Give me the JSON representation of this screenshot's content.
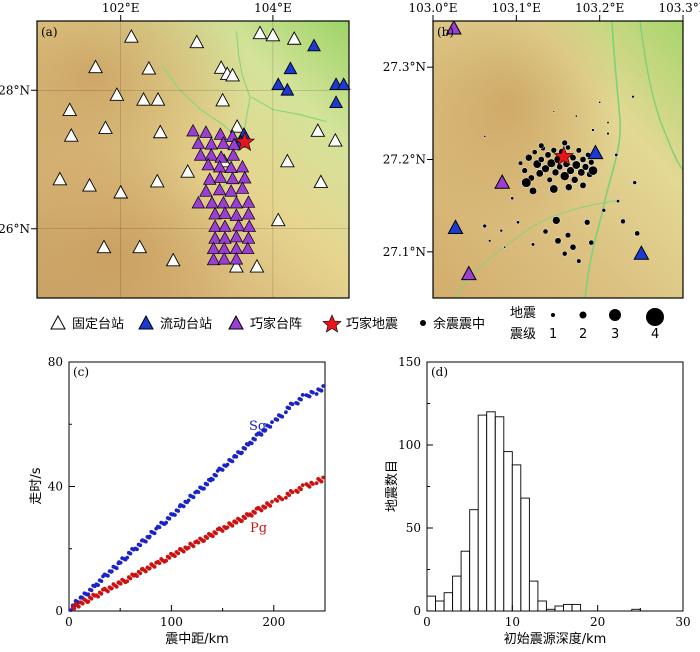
{
  "panel_labels": {
    "a": "(a)",
    "b": "(b)",
    "c": "(c)",
    "d": "(d)"
  },
  "map_a": {
    "lon_ticks": [
      "102°E",
      "104°E"
    ],
    "lat_ticks": [
      "28°N",
      "26°N"
    ],
    "fixed_stations": [
      [
        102.14,
        28.77
      ],
      [
        103.0,
        28.69
      ],
      [
        103.83,
        28.82
      ],
      [
        104.0,
        28.79
      ],
      [
        104.28,
        28.74
      ],
      [
        101.67,
        28.33
      ],
      [
        102.37,
        28.31
      ],
      [
        103.32,
        28.32
      ],
      [
        103.4,
        28.23
      ],
      [
        103.47,
        28.21
      ],
      [
        101.95,
        27.93
      ],
      [
        102.3,
        27.86
      ],
      [
        102.49,
        27.86
      ],
      [
        103.34,
        27.85
      ],
      [
        101.33,
        27.71
      ],
      [
        101.35,
        27.34
      ],
      [
        101.8,
        27.45
      ],
      [
        102.52,
        27.39
      ],
      [
        103.53,
        27.47
      ],
      [
        104.59,
        27.41
      ],
      [
        104.82,
        27.27
      ],
      [
        102.88,
        26.82
      ],
      [
        103.36,
        26.97
      ],
      [
        104.19,
        26.97
      ],
      [
        104.63,
        26.67
      ],
      [
        101.2,
        26.71
      ],
      [
        101.59,
        26.62
      ],
      [
        102.0,
        26.52
      ],
      [
        102.48,
        26.68
      ],
      [
        104.07,
        26.12
      ],
      [
        101.78,
        25.73
      ],
      [
        102.25,
        25.73
      ],
      [
        102.69,
        25.54
      ],
      [
        103.52,
        25.45
      ],
      [
        103.79,
        25.45
      ]
    ],
    "mobile_stations": [
      [
        104.23,
        28.31
      ],
      [
        104.19,
        28.0
      ],
      [
        104.07,
        28.08
      ],
      [
        104.83,
        28.08
      ],
      [
        104.93,
        28.08
      ],
      [
        104.83,
        27.82
      ],
      [
        104.54,
        28.64
      ],
      [
        103.62,
        27.36
      ],
      [
        103.58,
        27.25
      ]
    ],
    "array_stations": [
      [
        102.95,
        27.41
      ],
      [
        103.12,
        27.39
      ],
      [
        103.31,
        27.36
      ],
      [
        103.47,
        27.33
      ],
      [
        103.02,
        27.23
      ],
      [
        103.19,
        27.22
      ],
      [
        103.35,
        27.23
      ],
      [
        103.49,
        27.21
      ],
      [
        103.05,
        27.06
      ],
      [
        103.19,
        27.06
      ],
      [
        103.32,
        27.03
      ],
      [
        103.48,
        27.06
      ],
      [
        103.15,
        26.92
      ],
      [
        103.3,
        26.89
      ],
      [
        103.45,
        26.88
      ],
      [
        103.6,
        26.89
      ],
      [
        103.17,
        26.71
      ],
      [
        103.31,
        26.74
      ],
      [
        103.47,
        26.72
      ],
      [
        103.63,
        26.73
      ],
      [
        103.12,
        26.54
      ],
      [
        103.3,
        26.56
      ],
      [
        103.45,
        26.54
      ],
      [
        103.6,
        26.58
      ],
      [
        103.02,
        26.37
      ],
      [
        103.2,
        26.37
      ],
      [
        103.35,
        26.37
      ],
      [
        103.52,
        26.37
      ],
      [
        103.68,
        26.38
      ],
      [
        103.24,
        26.21
      ],
      [
        103.37,
        26.22
      ],
      [
        103.52,
        26.19
      ],
      [
        103.68,
        26.21
      ],
      [
        103.24,
        26.03
      ],
      [
        103.37,
        26.03
      ],
      [
        103.55,
        26.04
      ],
      [
        103.69,
        26.03
      ],
      [
        103.24,
        25.86
      ],
      [
        103.37,
        25.86
      ],
      [
        103.52,
        25.88
      ],
      [
        103.68,
        25.86
      ],
      [
        103.22,
        25.71
      ],
      [
        103.36,
        25.71
      ],
      [
        103.52,
        25.71
      ],
      [
        103.67,
        25.71
      ],
      [
        103.22,
        25.55
      ],
      [
        103.36,
        25.56
      ],
      [
        103.52,
        25.56
      ]
    ],
    "epicenter": [
      103.63,
      27.25
    ],
    "rivers": [
      [
        [
          103.52,
          28.85
        ],
        [
          103.55,
          28.5
        ],
        [
          103.6,
          28.2
        ],
        [
          103.7,
          27.9
        ],
        [
          103.65,
          27.6
        ],
        [
          103.6,
          27.25
        ],
        [
          103.45,
          26.95
        ],
        [
          103.35,
          26.6
        ]
      ],
      [
        [
          102.55,
          28.35
        ],
        [
          102.78,
          28.0
        ],
        [
          103.05,
          27.72
        ],
        [
          103.35,
          27.5
        ],
        [
          103.6,
          27.25
        ]
      ],
      [
        [
          103.72,
          27.9
        ],
        [
          104.0,
          27.72
        ],
        [
          104.35,
          27.65
        ],
        [
          104.7,
          27.55
        ]
      ]
    ]
  },
  "map_b": {
    "lon_ticks": [
      "103.0°E",
      "103.1°E",
      "103.2°E",
      "103.3°E"
    ],
    "lat_ticks": [
      "27.3°N",
      "27.2°N",
      "27.1°N"
    ],
    "mobile_stations": [
      [
        103.195,
        27.207
      ],
      [
        103.027,
        27.126
      ],
      [
        103.25,
        27.098
      ]
    ],
    "array_stations": [
      [
        103.083,
        27.175
      ],
      [
        103.043,
        27.076
      ],
      [
        103.025,
        27.342
      ]
    ],
    "epicenter": [
      103.157,
      27.203
    ],
    "aftershocks": [
      [
        103.105,
        27.196,
        2.0
      ],
      [
        103.11,
        27.188,
        2.4
      ],
      [
        103.115,
        27.202,
        2.8
      ],
      [
        103.118,
        27.18,
        2.6
      ],
      [
        103.122,
        27.208,
        2.2
      ],
      [
        103.125,
        27.195,
        3.2
      ],
      [
        103.128,
        27.185,
        2.9
      ],
      [
        103.13,
        27.2,
        2.5
      ],
      [
        103.132,
        27.212,
        2.1
      ],
      [
        103.135,
        27.19,
        3.0
      ],
      [
        103.138,
        27.205,
        2.6
      ],
      [
        103.14,
        27.178,
        2.3
      ],
      [
        103.142,
        27.196,
        3.3
      ],
      [
        103.145,
        27.21,
        2.4
      ],
      [
        103.147,
        27.186,
        2.8
      ],
      [
        103.15,
        27.2,
        3.1
      ],
      [
        103.152,
        27.192,
        2.5
      ],
      [
        103.155,
        27.208,
        2.9
      ],
      [
        103.158,
        27.182,
        3.4
      ],
      [
        103.16,
        27.195,
        2.7
      ],
      [
        103.162,
        27.213,
        2.2
      ],
      [
        103.165,
        27.188,
        3.0
      ],
      [
        103.168,
        27.202,
        2.6
      ],
      [
        103.17,
        27.178,
        2.8
      ],
      [
        103.172,
        27.194,
        3.2
      ],
      [
        103.175,
        27.21,
        2.3
      ],
      [
        103.178,
        27.186,
        2.9
      ],
      [
        103.18,
        27.2,
        2.5
      ],
      [
        103.183,
        27.192,
        2.7
      ],
      [
        103.186,
        27.205,
        2.2
      ],
      [
        103.188,
        27.184,
        2.6
      ],
      [
        103.19,
        27.197,
        2.4
      ],
      [
        103.112,
        27.175,
        3.6
      ],
      [
        103.12,
        27.166,
        2.9
      ],
      [
        103.145,
        27.168,
        3.2
      ],
      [
        103.163,
        27.17,
        2.8
      ],
      [
        103.18,
        27.172,
        2.6
      ],
      [
        103.192,
        27.188,
        3.5
      ],
      [
        103.13,
        27.215,
        2.3
      ],
      [
        103.158,
        27.218,
        2.4
      ],
      [
        103.135,
        27.122,
        2.2
      ],
      [
        103.15,
        27.112,
        2.6
      ],
      [
        103.162,
        27.118,
        2.3
      ],
      [
        103.168,
        27.105,
        2.5
      ],
      [
        103.158,
        27.098,
        2.1
      ],
      [
        103.185,
        27.132,
        2.4
      ],
      [
        103.19,
        27.11,
        2.2
      ],
      [
        103.175,
        27.09,
        2.0
      ],
      [
        103.148,
        27.134,
        3.0
      ],
      [
        103.205,
        27.145,
        1.8
      ],
      [
        103.222,
        27.155,
        1.6
      ],
      [
        103.228,
        27.133,
        2.1
      ],
      [
        103.12,
        27.108,
        1.7
      ],
      [
        103.102,
        27.132,
        1.6
      ],
      [
        103.082,
        27.123,
        1.5
      ],
      [
        103.062,
        27.128,
        1.8
      ],
      [
        103.068,
        27.112,
        1.4
      ],
      [
        103.086,
        27.105,
        1.2
      ],
      [
        103.095,
        27.158,
        1.6
      ],
      [
        103.062,
        27.225,
        1.2
      ],
      [
        103.21,
        27.228,
        1.4
      ],
      [
        103.22,
        27.205,
        1.6
      ],
      [
        103.242,
        27.175,
        1.8
      ],
      [
        103.245,
        27.12,
        2.2
      ],
      [
        103.24,
        27.268,
        1.4
      ],
      [
        103.2,
        27.262,
        1.2
      ],
      [
        103.21,
        27.24,
        1.3
      ],
      [
        103.192,
        27.232,
        1.5
      ],
      [
        103.172,
        27.247,
        1.2
      ],
      [
        103.145,
        27.252,
        1.1
      ]
    ]
  },
  "legend": {
    "fixed_station": "固定台站",
    "mobile_station": "流动台站",
    "array_station": "巧家台阵",
    "epicenter": "巧家地震",
    "aftershock": "余震震中",
    "magnitude_title_1": "地震",
    "magnitude_title_2": "震级",
    "magnitudes": [
      "1",
      "2",
      "3",
      "4"
    ]
  },
  "chart_data": [
    {
      "type": "scatter",
      "panel": "(c)",
      "xlabel": "震中距/km",
      "ylabel": "走时/s",
      "xlim": [
        0,
        250
      ],
      "ylim": [
        0,
        80
      ],
      "xticks": [
        "0",
        "100",
        "200"
      ],
      "yticks": [
        "0",
        "40",
        "80"
      ],
      "series": [
        {
          "name": "Sg",
          "color": "#1a23c8",
          "x": [
            2,
            8,
            15,
            22,
            30,
            38,
            45,
            52,
            60,
            68,
            75,
            82,
            90,
            98,
            105,
            112,
            120,
            128,
            135,
            142,
            150,
            158,
            165,
            172,
            180,
            188,
            195,
            205,
            215,
            225,
            235,
            245
          ],
          "y": [
            1.0,
            3.0,
            5.0,
            7.0,
            9.5,
            12.0,
            14.0,
            16.3,
            18.8,
            21.0,
            23.0,
            25.2,
            27.7,
            30.0,
            32.0,
            34.3,
            36.8,
            39.0,
            41.0,
            43.4,
            46.0,
            48.3,
            50.4,
            52.5,
            55.0,
            57.3,
            59.4,
            62.2,
            65.5,
            67.8,
            69.6,
            71.0
          ]
        },
        {
          "name": "Pg",
          "color": "#cc1111",
          "x": [
            2,
            8,
            15,
            22,
            30,
            38,
            45,
            52,
            60,
            68,
            75,
            82,
            90,
            98,
            105,
            112,
            120,
            128,
            135,
            142,
            150,
            158,
            165,
            172,
            180,
            188,
            195,
            205,
            215,
            225,
            235,
            245
          ],
          "y": [
            0.6,
            1.8,
            3.0,
            4.3,
            5.6,
            7.0,
            8.2,
            9.4,
            10.8,
            12.2,
            13.4,
            14.6,
            16.0,
            17.4,
            18.6,
            19.8,
            21.2,
            22.6,
            23.8,
            25.0,
            26.4,
            27.8,
            29.0,
            30.2,
            31.6,
            33.0,
            34.2,
            36.0,
            37.6,
            39.2,
            40.6,
            42.0
          ]
        }
      ]
    },
    {
      "type": "bar",
      "panel": "(d)",
      "xlabel": "初始震源深度/km",
      "ylabel": "地震数目",
      "xlim": [
        0,
        30
      ],
      "ylim": [
        0,
        150
      ],
      "xticks": [
        "0",
        "10",
        "20",
        "30"
      ],
      "yticks": [
        "0",
        "50",
        "100",
        "150"
      ],
      "bin_width": 1,
      "bin_starts": [
        0,
        1,
        2,
        3,
        4,
        5,
        6,
        7,
        8,
        9,
        10,
        11,
        12,
        13,
        14,
        15,
        16,
        17,
        18,
        19,
        20,
        21,
        22,
        23,
        24,
        25,
        26,
        27,
        28,
        29
      ],
      "values": [
        9,
        6,
        11,
        21,
        36,
        61,
        118,
        120,
        117,
        96,
        88,
        68,
        18,
        6,
        1,
        3,
        4,
        4,
        0,
        0,
        0,
        0,
        0,
        0,
        1,
        0,
        0,
        0,
        0,
        0
      ]
    }
  ]
}
